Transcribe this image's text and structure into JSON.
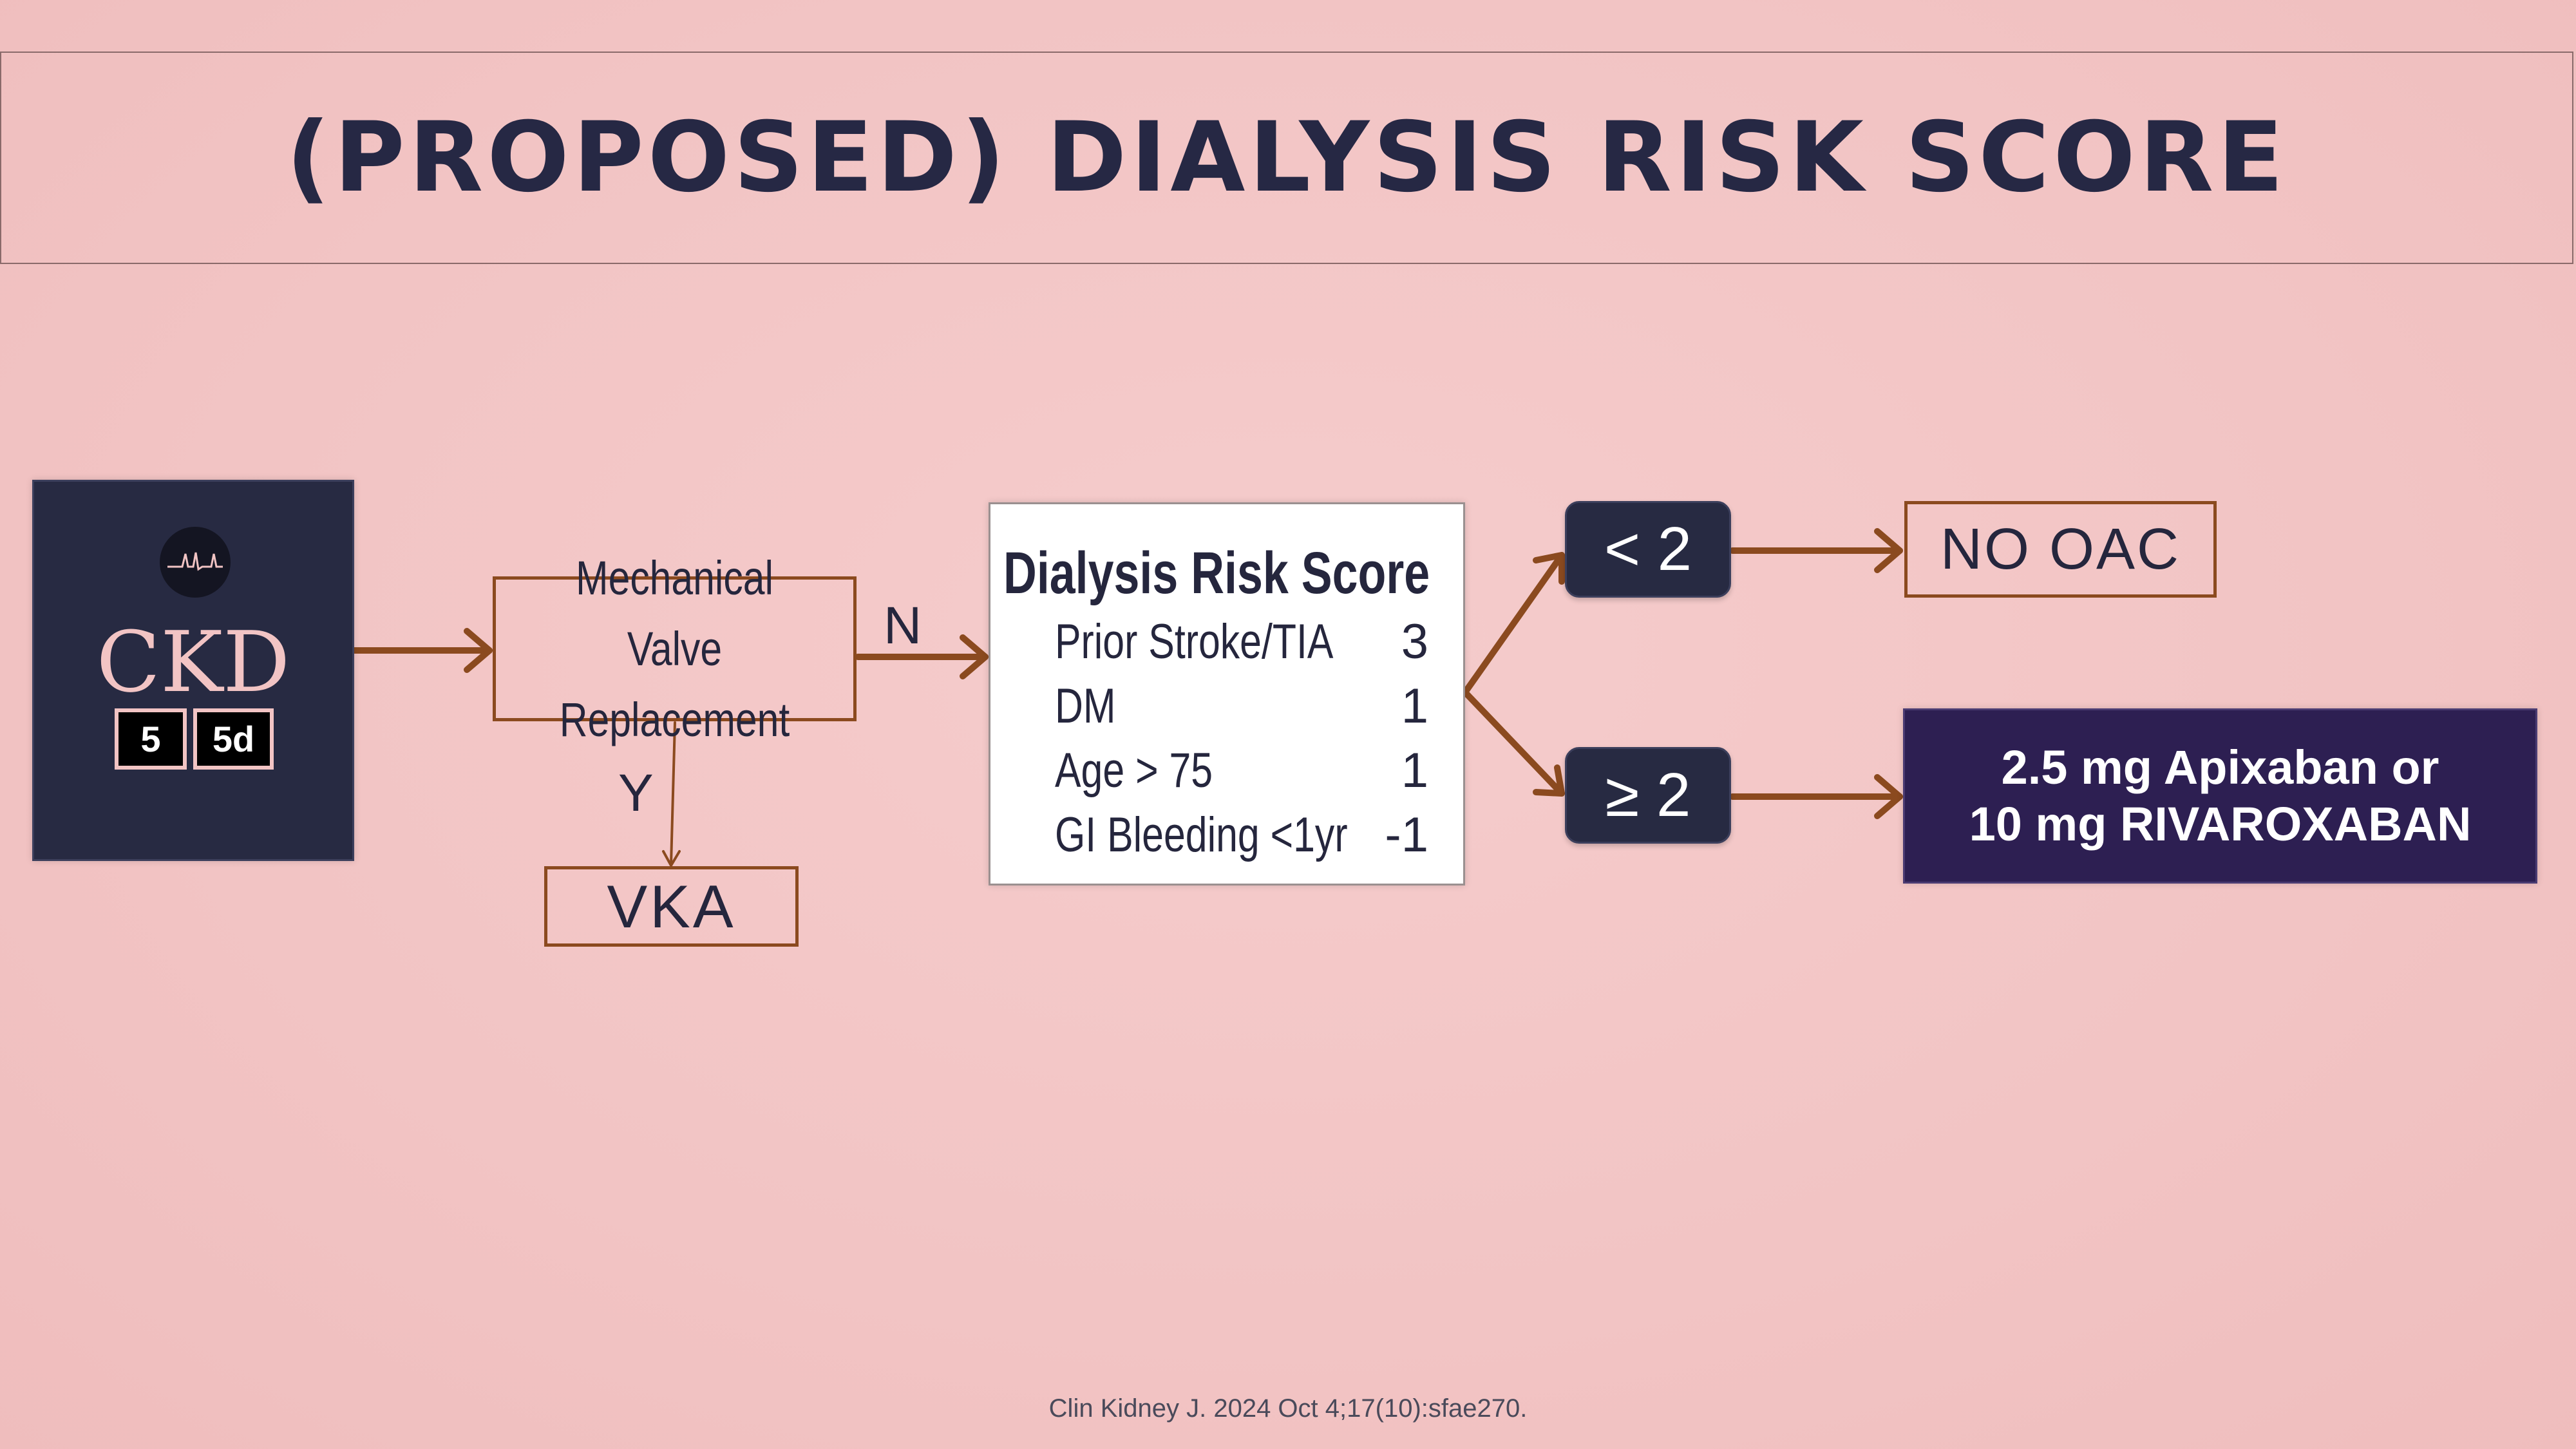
{
  "title": "(PROPOSED) DIALYSIS RISK SCORE",
  "ckd": {
    "label": "CKD",
    "stages": [
      "5",
      "5d"
    ]
  },
  "mechanical_valve": {
    "line1": "Mechanical Valve",
    "line2": "Replacement"
  },
  "branch_labels": {
    "no": "N",
    "yes": "Y"
  },
  "vka": "VKA",
  "score": {
    "title": "Dialysis Risk Score",
    "rows": [
      {
        "factor": "Prior Stroke/TIA",
        "points": "3"
      },
      {
        "factor": "DM",
        "points": "1"
      },
      {
        "factor": "Age > 75",
        "points": "1"
      },
      {
        "factor": "GI Bleeding <1yr",
        "points": "-1"
      }
    ]
  },
  "thresholds": {
    "low": "< 2",
    "high": "≥ 2"
  },
  "outcomes": {
    "low": "NO OAC",
    "high_line1": "2.5 mg Apixaban or",
    "high_line2": "10 mg RIVAROXABAN"
  },
  "citation": "Clin Kidney J. 2024 Oct 4;17(10):sfae270.",
  "colors": {
    "background": "#f2c4c4",
    "navy": "#272a42",
    "arrow": "#8b4a1f",
    "purple": "#2d1f52"
  }
}
